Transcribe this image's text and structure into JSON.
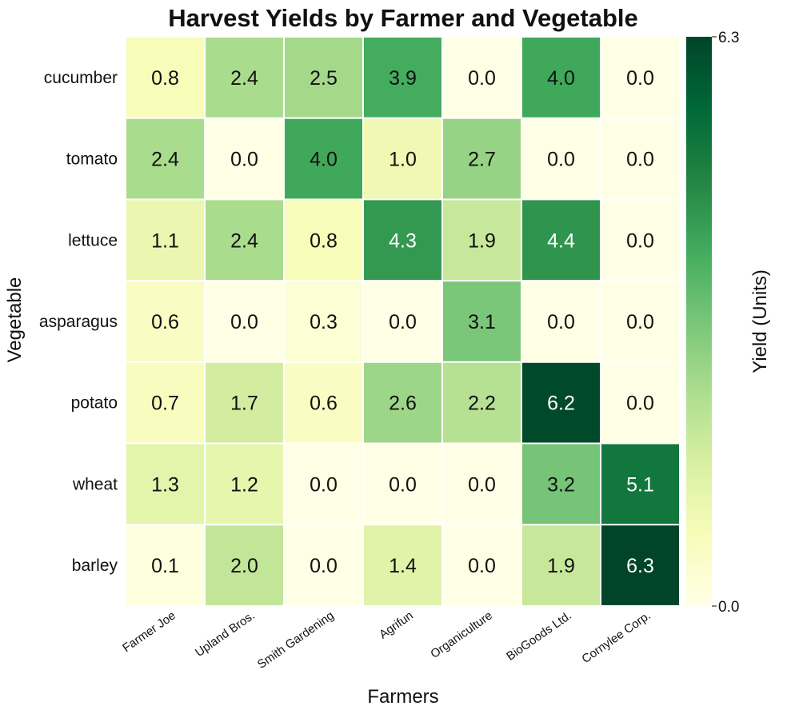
{
  "chart_data": {
    "type": "heatmap",
    "title": "Harvest Yields by Farmer and Vegetable",
    "xlabel": "Farmers",
    "ylabel": "Vegetable",
    "x_categories": [
      "Farmer Joe",
      "Upland Bros.",
      "Smith Gardening",
      "Agrifun",
      "Organiculture",
      "BioGoods Ltd.",
      "Cornylee Corp."
    ],
    "y_categories": [
      "cucumber",
      "tomato",
      "lettuce",
      "asparagus",
      "potato",
      "wheat",
      "barley"
    ],
    "values": [
      [
        0.8,
        2.4,
        2.5,
        3.9,
        0.0,
        4.0,
        0.0
      ],
      [
        2.4,
        0.0,
        4.0,
        1.0,
        2.7,
        0.0,
        0.0
      ],
      [
        1.1,
        2.4,
        0.8,
        4.3,
        1.9,
        4.4,
        0.0
      ],
      [
        0.6,
        0.0,
        0.3,
        0.0,
        3.1,
        0.0,
        0.0
      ],
      [
        0.7,
        1.7,
        0.6,
        2.6,
        2.2,
        6.2,
        0.0
      ],
      [
        1.3,
        1.2,
        0.0,
        0.0,
        0.0,
        3.2,
        5.1
      ],
      [
        0.1,
        2.0,
        0.0,
        1.4,
        0.0,
        1.9,
        6.3
      ]
    ],
    "colorbar": {
      "label": "Yield (Units)",
      "range": [
        0.0,
        6.3
      ],
      "ticks": [
        "0.0",
        "6.3"
      ],
      "colormap": "YlGn",
      "colors": [
        "#ffffe5",
        "#f7fcb9",
        "#d9f0a3",
        "#addd8e",
        "#78c679",
        "#41ab5d",
        "#238443",
        "#006837",
        "#004529"
      ]
    }
  }
}
